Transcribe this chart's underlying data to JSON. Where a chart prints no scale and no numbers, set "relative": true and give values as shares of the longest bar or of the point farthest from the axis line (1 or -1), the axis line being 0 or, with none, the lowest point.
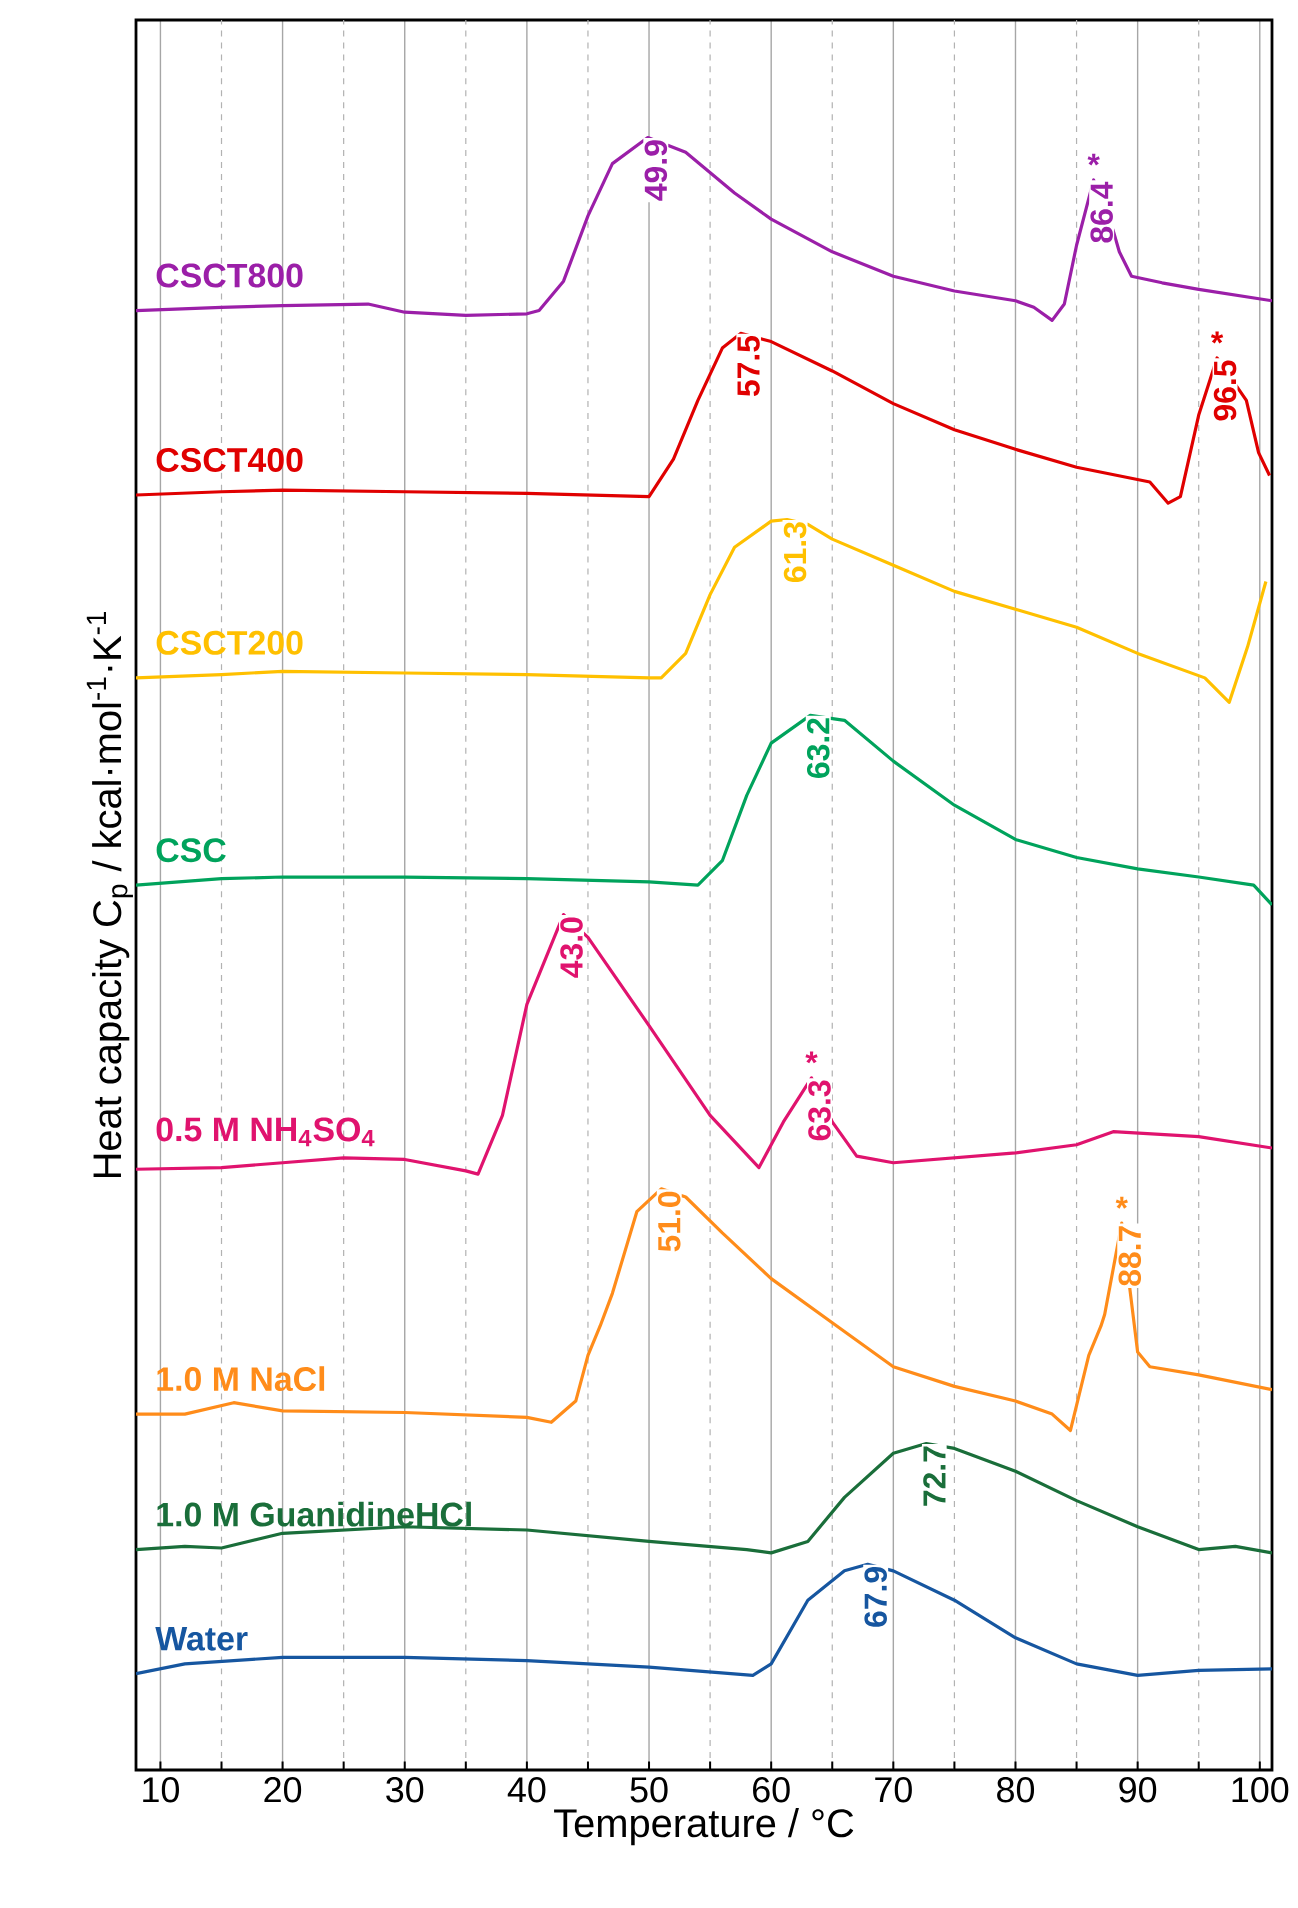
{
  "chart_data": {
    "type": "line",
    "relative": true,
    "xlabel": "Temperature / °C",
    "ylabel": "Heat capacity C$_{p}$ / kcal·mol$^{-1}$·K$^{-1}$",
    "xlim": [
      8,
      101
    ],
    "xticks": [
      10,
      {
        "value": 15,
        "label": null
      },
      20,
      {
        "value": 25,
        "label": null
      },
      30,
      {
        "value": 35,
        "label": null
      },
      40,
      {
        "value": 45,
        "label": null
      },
      50,
      {
        "value": 55,
        "label": null
      },
      60,
      {
        "value": 65,
        "label": null
      },
      70,
      {
        "value": 75,
        "label": null
      },
      80,
      {
        "value": 85,
        "label": null
      },
      90,
      {
        "value": 95,
        "label": null
      },
      100
    ],
    "grid": "x",
    "series": [
      {
        "name": "CSCT800",
        "color": "#9b1fa8",
        "x": [
          8,
          15,
          20,
          27,
          30,
          35,
          40,
          41,
          43,
          45,
          47,
          49.9,
          53,
          57,
          60,
          65,
          70,
          75,
          80,
          81.5,
          83,
          84,
          85,
          86.4,
          88,
          88.5,
          89.5,
          92,
          95,
          101
        ],
        "values": [
          0.894,
          0.896,
          0.897,
          0.898,
          0.893,
          0.891,
          0.892,
          0.894,
          0.912,
          0.952,
          0.984,
          1.0,
          0.991,
          0.966,
          0.95,
          0.93,
          0.915,
          0.906,
          0.9,
          0.896,
          0.888,
          0.898,
          0.934,
          0.974,
          0.943,
          0.93,
          0.915,
          0.911,
          0.907,
          0.9
        ]
      },
      {
        "name": "CSCT400",
        "color": "#e00000",
        "x": [
          8,
          15,
          20,
          30,
          40,
          50,
          52,
          54,
          56,
          57.5,
          60,
          65,
          70,
          75,
          80,
          85,
          91,
          92.5,
          93.5,
          95,
          96.5,
          98.9,
          99.9,
          100.8
        ],
        "values": [
          0.781,
          0.783,
          0.784,
          0.783,
          0.782,
          0.78,
          0.803,
          0.839,
          0.871,
          0.88,
          0.875,
          0.857,
          0.837,
          0.821,
          0.809,
          0.798,
          0.789,
          0.776,
          0.78,
          0.83,
          0.865,
          0.839,
          0.807,
          0.793
        ]
      },
      {
        "name": "CSCT200",
        "color": "#ffc000",
        "x": [
          8,
          15,
          20,
          30,
          40,
          50,
          51,
          53,
          55,
          57,
          60,
          61.3,
          63,
          65,
          70,
          75,
          80,
          85,
          90,
          95.5,
          97.5,
          99,
          100.5
        ],
        "values": [
          0.669,
          0.671,
          0.673,
          0.672,
          0.671,
          0.669,
          0.669,
          0.684,
          0.72,
          0.749,
          0.765,
          0.766,
          0.763,
          0.754,
          0.738,
          0.722,
          0.711,
          0.7,
          0.684,
          0.669,
          0.654,
          0.688,
          0.728
        ]
      },
      {
        "name": "CSC",
        "color": "#00a35c",
        "x": [
          8,
          15,
          20,
          30,
          40,
          50,
          54,
          56,
          58,
          60,
          63.2,
          66,
          70,
          75,
          80,
          85,
          90,
          95,
          99.5,
          101
        ],
        "values": [
          0.542,
          0.546,
          0.547,
          0.547,
          0.546,
          0.544,
          0.542,
          0.557,
          0.597,
          0.629,
          0.646,
          0.643,
          0.618,
          0.591,
          0.57,
          0.559,
          0.552,
          0.547,
          0.542,
          0.53
        ]
      },
      {
        "name": "0.5 M NH$_{4}$SO$_{4}$",
        "color": "#e0136e",
        "x": [
          8,
          15,
          20,
          25,
          30,
          35,
          36,
          38,
          40,
          43,
          45,
          50,
          55,
          59,
          61,
          63.3,
          65,
          67,
          70,
          80,
          85,
          88,
          95,
          101
        ],
        "values": [
          0.368,
          0.369,
          0.372,
          0.375,
          0.374,
          0.367,
          0.365,
          0.401,
          0.469,
          0.524,
          0.51,
          0.456,
          0.401,
          0.369,
          0.397,
          0.424,
          0.397,
          0.376,
          0.372,
          0.378,
          0.383,
          0.391,
          0.388,
          0.381
        ]
      },
      {
        "name": "1.0 M NaCl",
        "color": "#ff8c1a",
        "x": [
          8,
          12,
          16,
          20,
          30,
          40,
          42,
          44,
          45,
          46,
          47,
          49,
          51,
          53,
          56,
          60,
          65,
          70,
          75,
          80,
          83,
          84.5,
          86,
          87,
          87.3,
          88.7,
          90,
          91,
          95,
          101
        ],
        "values": [
          0.218,
          0.218,
          0.225,
          0.22,
          0.219,
          0.216,
          0.213,
          0.226,
          0.254,
          0.272,
          0.292,
          0.342,
          0.356,
          0.351,
          0.329,
          0.301,
          0.274,
          0.247,
          0.235,
          0.226,
          0.218,
          0.208,
          0.254,
          0.272,
          0.279,
          0.335,
          0.256,
          0.247,
          0.242,
          0.233
        ]
      },
      {
        "name": "1.0 M GuanidineHCl",
        "color": "#1a6e3a",
        "x": [
          8,
          12,
          15,
          20,
          30,
          40,
          50,
          58,
          60,
          63,
          66,
          70,
          72.7,
          75,
          80,
          85,
          90,
          95,
          98,
          101
        ],
        "values": [
          0.135,
          0.137,
          0.136,
          0.145,
          0.149,
          0.147,
          0.14,
          0.135,
          0.133,
          0.14,
          0.167,
          0.194,
          0.2,
          0.197,
          0.183,
          0.165,
          0.149,
          0.135,
          0.137,
          0.133
        ]
      },
      {
        "name": "Water",
        "color": "#1656a0",
        "x": [
          8,
          12,
          20,
          30,
          40,
          50,
          58.5,
          60,
          63,
          66,
          67.9,
          70,
          75,
          80,
          85,
          90,
          95,
          101
        ],
        "values": [
          0.059,
          0.065,
          0.069,
          0.069,
          0.067,
          0.063,
          0.058,
          0.065,
          0.104,
          0.122,
          0.126,
          0.122,
          0.104,
          0.081,
          0.065,
          0.058,
          0.061,
          0.062
        ]
      }
    ],
    "annotations": [
      {
        "text": "49.9",
        "x": 49.9,
        "y": 1.0
      },
      {
        "text": "*",
        "x": 86.4,
        "y": 0.974
      },
      {
        "text": "86.4",
        "x": 86.4,
        "y": 0.974
      },
      {
        "text": "57.5",
        "x": 57.5,
        "y": 0.88
      },
      {
        "text": "*",
        "x": 96.5,
        "y": 0.865
      },
      {
        "text": "96.5",
        "x": 96.5,
        "y": 0.865
      },
      {
        "text": "61.3",
        "x": 61.3,
        "y": 0.766
      },
      {
        "text": "63.2",
        "x": 63.2,
        "y": 0.646
      },
      {
        "text": "43.0",
        "x": 43.0,
        "y": 0.524
      },
      {
        "text": "*",
        "x": 63.3,
        "y": 0.424
      },
      {
        "text": "63.3",
        "x": 63.3,
        "y": 0.424
      },
      {
        "text": "51.0",
        "x": 51.0,
        "y": 0.356
      },
      {
        "text": "*",
        "x": 88.7,
        "y": 0.335
      },
      {
        "text": "88.7",
        "x": 88.7,
        "y": 0.335
      },
      {
        "text": "72.7",
        "x": 72.7,
        "y": 0.2
      },
      {
        "text": "67.9",
        "x": 67.9,
        "y": 0.126
      }
    ]
  }
}
